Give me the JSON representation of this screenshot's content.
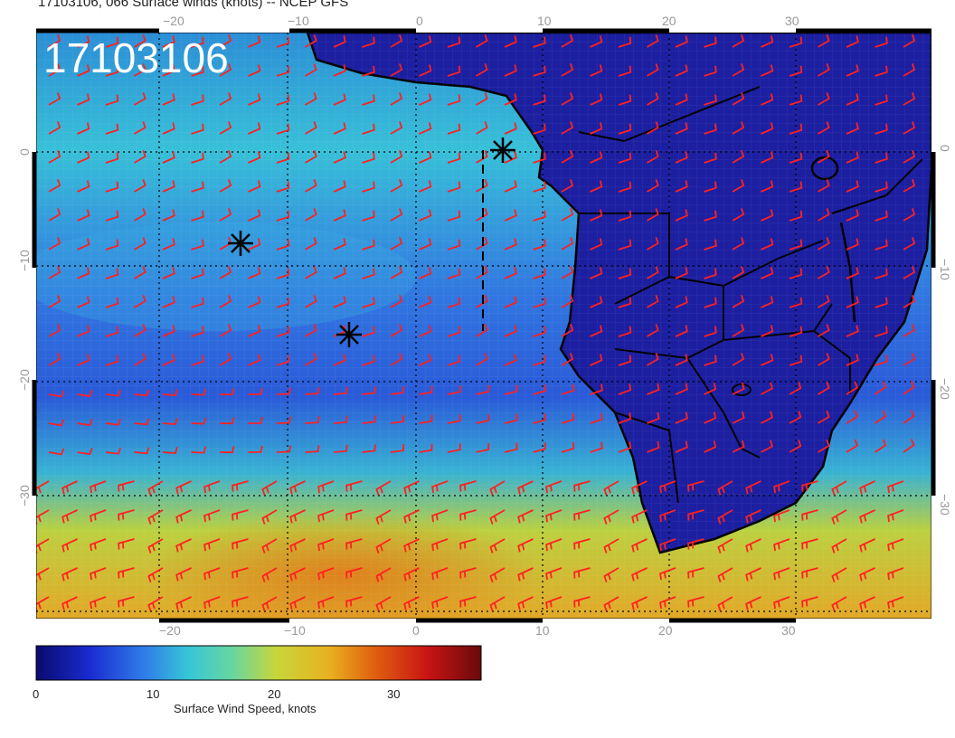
{
  "title": "17103106, 066 Surface winds (knots) -- NCEP GFS",
  "stamp": "17103106",
  "axes": {
    "lon_ticks": [
      "−20",
      "−10",
      "0",
      "10",
      "20",
      "30"
    ],
    "lat_ticks": [
      "0",
      "−10",
      "−20",
      "−30"
    ]
  },
  "colorbar": {
    "label": "Surface Wind Speed, knots",
    "ticks": [
      "0",
      "10",
      "20",
      "30"
    ],
    "colors": [
      "#0a0a6e",
      "#1a2bd0",
      "#2f7be8",
      "#36c5d8",
      "#67d6a0",
      "#c8d63a",
      "#e8b020",
      "#e06010",
      "#c81414",
      "#6a0a0a"
    ]
  },
  "markers": [
    {
      "name": "storm-marker-1"
    },
    {
      "name": "storm-marker-2"
    },
    {
      "name": "storm-marker-3"
    }
  ],
  "colors": {
    "barb": "#ff2020",
    "land": "#1a22a8",
    "ocean_mid": "#2f6fe0",
    "coast": "#000000"
  }
}
